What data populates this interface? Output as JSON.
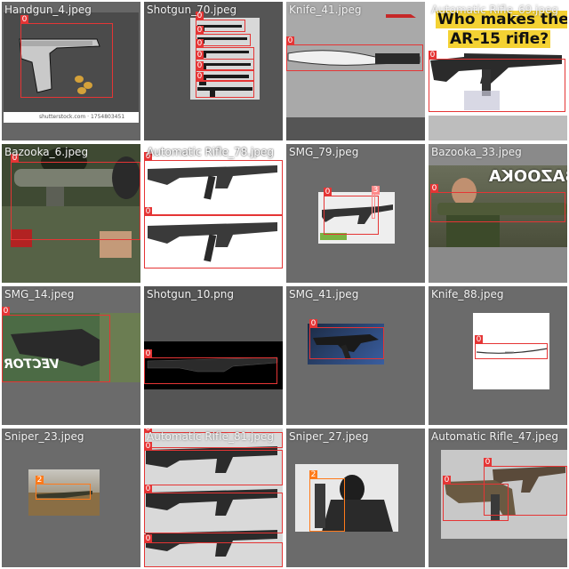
{
  "tiles": [
    {
      "id": "handgun-4",
      "label": "Handgun_4.jpeg",
      "boxes": [
        {
          "cls": "0"
        }
      ],
      "caption": "shutterstock.com · 1754803451"
    },
    {
      "id": "shotgun-70",
      "label": "Shotgun_70.jpeg",
      "boxes": [
        {
          "cls": "0"
        },
        {
          "cls": "0"
        },
        {
          "cls": "0"
        },
        {
          "cls": "0"
        },
        {
          "cls": "0"
        },
        {
          "cls": "0"
        }
      ]
    },
    {
      "id": "knife-41",
      "label": "Knife_41.jpeg",
      "boxes": [
        {
          "cls": "0"
        }
      ]
    },
    {
      "id": "automatic-rifle-69",
      "label": "Automatic Rifle_69.jpeg",
      "boxes": [
        {
          "cls": "0"
        }
      ],
      "overlay_line1": "Who makes the",
      "overlay_line2": "AR-15 rifle?"
    },
    {
      "id": "bazooka-6",
      "label": "Bazooka_6.jpeg",
      "boxes": [
        {
          "cls": "0"
        }
      ]
    },
    {
      "id": "automatic-rifle-78",
      "label": "Automatic Rifle_78.jpeg",
      "boxes": [
        {
          "cls": "0"
        },
        {
          "cls": "0"
        }
      ]
    },
    {
      "id": "smg-79",
      "label": "SMG_79.jpeg",
      "boxes": [
        {
          "cls": "0"
        },
        {
          "cls": "3"
        }
      ]
    },
    {
      "id": "bazooka-33",
      "label": "Bazooka_33.jpeg",
      "boxes": [
        {
          "cls": "0"
        }
      ],
      "overlay": "BAZOOKA"
    },
    {
      "id": "smg-14",
      "label": "SMG_14.jpeg",
      "boxes": [
        {
          "cls": "0"
        }
      ],
      "overlay": "VECTOR"
    },
    {
      "id": "shotgun-10",
      "label": "Shotgun_10.png",
      "boxes": [
        {
          "cls": "0"
        }
      ]
    },
    {
      "id": "smg-41",
      "label": "SMG_41.jpeg",
      "boxes": [
        {
          "cls": "0"
        }
      ]
    },
    {
      "id": "knife-88",
      "label": "Knife_88.jpeg",
      "boxes": [
        {
          "cls": "0"
        }
      ]
    },
    {
      "id": "sniper-23",
      "label": "Sniper_23.jpeg",
      "boxes": [
        {
          "cls": "2"
        }
      ]
    },
    {
      "id": "automatic-rifle-81",
      "label": "Automatic Rifle_81.jpeg",
      "boxes": [
        {
          "cls": "0"
        },
        {
          "cls": "0"
        },
        {
          "cls": "0"
        },
        {
          "cls": "0"
        }
      ]
    },
    {
      "id": "sniper-27",
      "label": "Sniper_27.jpeg",
      "boxes": [
        {
          "cls": "2"
        }
      ]
    },
    {
      "id": "automatic-rifle-47",
      "label": "Automatic Rifle_47.jpeg",
      "boxes": [
        {
          "cls": "0"
        },
        {
          "cls": "0"
        }
      ]
    }
  ],
  "colors": {
    "box_default": "#e53535",
    "box_sniper": "#ff7a1a",
    "grid_gap": "#ffffff"
  },
  "icons": {
    "gun": "gun-icon",
    "knife": "knife-icon",
    "person": "person-icon"
  }
}
